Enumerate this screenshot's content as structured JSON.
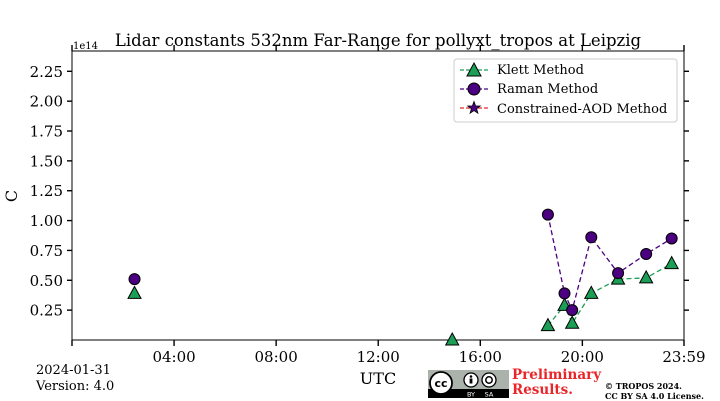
{
  "chart_data": {
    "type": "scatter",
    "title": "Lidar constants 532nm Far-Range for pollyxt_tropos at Leipzig",
    "xlabel": "UTC",
    "ylabel": "C",
    "y_offset_label": "1e14",
    "xlim": [
      0,
      23.983
    ],
    "ylim": [
      0.0,
      2.42
    ],
    "x_ticks": [
      4,
      8,
      12,
      16,
      20,
      23.983
    ],
    "x_tick_labels": [
      "04:00",
      "08:00",
      "12:00",
      "16:00",
      "20:00",
      "23:59"
    ],
    "y_ticks": [
      0.25,
      0.5,
      0.75,
      1.0,
      1.25,
      1.5,
      1.75,
      2.0,
      2.25
    ],
    "y_tick_labels": [
      "0.25",
      "0.50",
      "0.75",
      "1.00",
      "1.25",
      "1.50",
      "1.75",
      "2.00",
      "2.25"
    ],
    "legend_position": "top-right",
    "series": [
      {
        "name": "Klett Method",
        "marker": "triangle",
        "color": "#1b9e55",
        "line": "dashed",
        "points": [
          {
            "x": 2.45,
            "y": 0.39,
            "connected": false
          },
          {
            "x": 14.9,
            "y": 0.0,
            "connected": false
          },
          {
            "x": 18.65,
            "y": 0.12,
            "connected": true
          },
          {
            "x": 19.3,
            "y": 0.29,
            "connected": true
          },
          {
            "x": 19.6,
            "y": 0.14,
            "connected": true
          },
          {
            "x": 20.35,
            "y": 0.39,
            "connected": true
          },
          {
            "x": 21.4,
            "y": 0.51,
            "connected": true
          },
          {
            "x": 22.5,
            "y": 0.52,
            "connected": true
          },
          {
            "x": 23.5,
            "y": 0.64,
            "connected": true
          }
        ]
      },
      {
        "name": "Raman Method",
        "marker": "circle",
        "color": "#4b0082",
        "line": "dashed",
        "points": [
          {
            "x": 2.45,
            "y": 0.51,
            "connected": false
          },
          {
            "x": 18.65,
            "y": 1.05,
            "connected": true
          },
          {
            "x": 19.3,
            "y": 0.39,
            "connected": true
          },
          {
            "x": 19.6,
            "y": 0.25,
            "connected": true
          },
          {
            "x": 20.35,
            "y": 0.86,
            "connected": true
          },
          {
            "x": 21.4,
            "y": 0.56,
            "connected": true
          },
          {
            "x": 22.5,
            "y": 0.72,
            "connected": true
          },
          {
            "x": 23.5,
            "y": 0.85,
            "connected": true
          }
        ]
      },
      {
        "name": "Constrained-AOD Method",
        "marker": "star",
        "color": "#e8262a",
        "line": "dashed",
        "points": []
      }
    ]
  },
  "footer": {
    "date": "2024-01-31",
    "version": "Version: 4.0",
    "preliminary_line1": "Preliminary",
    "preliminary_line2": "Results.",
    "copyright_line1": "© TROPOS 2024.",
    "copyright_line2": "CC BY SA 4.0 License.",
    "license_badge": {
      "cc": "cc",
      "by": "BY",
      "sa": "SA"
    }
  },
  "colors": {
    "klett_fill": "#1b9e55",
    "raman_fill": "#4b0082",
    "aod_fill": "#4b0082",
    "aod_line": "#e8262a",
    "preliminary": "#e8262a"
  }
}
